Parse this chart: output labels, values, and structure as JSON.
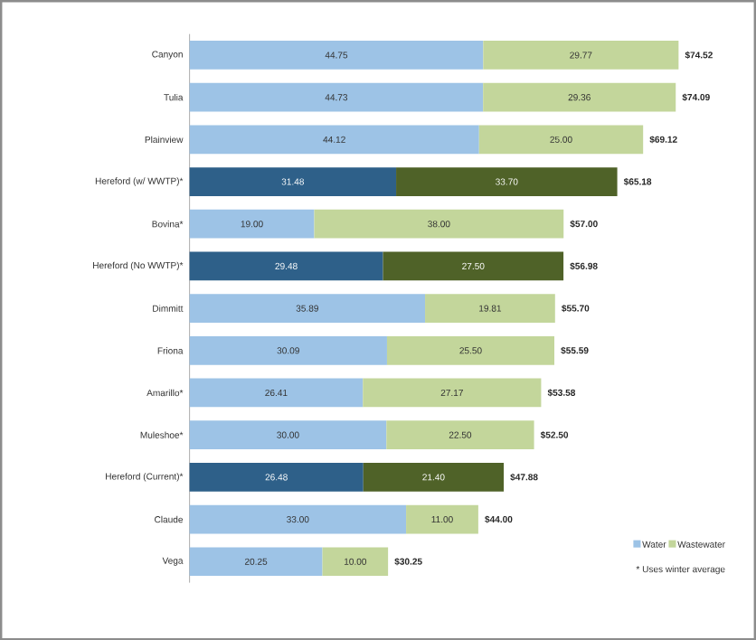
{
  "chart_data": {
    "type": "bar",
    "orientation": "horizontal",
    "stacked": true,
    "legend": "bottom right",
    "categories": [
      "Canyon",
      "Tulia",
      "Plainview",
      "Hereford (w/ WWTP)*",
      "Bovina*",
      "Hereford (No WWTP)*",
      "Dimmitt",
      "Friona",
      "Amarillo*",
      "Muleshoe*",
      "Hereford (Current)*",
      "Claude",
      "Vega"
    ],
    "series": [
      {
        "name": "Water",
        "color": "#9dc3e6",
        "colors": [
          "#9dc3e6",
          "#9dc3e6",
          "#9dc3e6",
          "#2e6089",
          "#9dc3e6",
          "#2e6089",
          "#9dc3e6",
          "#9dc3e6",
          "#9dc3e6",
          "#9dc3e6",
          "#2e6089",
          "#9dc3e6",
          "#9dc3e6"
        ],
        "values": [
          44.75,
          44.73,
          44.12,
          31.48,
          19.0,
          29.48,
          35.89,
          30.09,
          26.41,
          30.0,
          26.48,
          33.0,
          20.25
        ],
        "value_labels": [
          "44.75",
          "44.73",
          "44.12",
          "31.48",
          "19.00",
          "29.48",
          "35.89",
          "30.09",
          "26.41",
          "30.00",
          "26.48",
          "33.00",
          "20.25"
        ]
      },
      {
        "name": "Wastewater",
        "color": "#c3d69b",
        "colors": [
          "#c3d69b",
          "#c3d69b",
          "#c3d69b",
          "#4f6228",
          "#c3d69b",
          "#4f6228",
          "#c3d69b",
          "#c3d69b",
          "#c3d69b",
          "#c3d69b",
          "#4f6228",
          "#c3d69b",
          "#c3d69b"
        ],
        "values": [
          29.77,
          29.36,
          25.0,
          33.7,
          38.0,
          27.5,
          19.81,
          25.5,
          27.17,
          22.5,
          21.4,
          11.0,
          10.0
        ],
        "value_labels": [
          "29.77",
          "29.36",
          "25.00",
          "33.70",
          "38.00",
          "27.50",
          "19.81",
          "25.50",
          "27.17",
          "22.50",
          "21.40",
          "11.00",
          "10.00"
        ]
      }
    ],
    "totals": [
      "$74.52",
      "$74.09",
      "$69.12",
      "$65.18",
      "$57.00",
      "$56.98",
      "$55.70",
      "$55.59",
      "$53.58",
      "$52.50",
      "$47.88",
      "$44.00",
      "$30.25"
    ],
    "annotations": [
      "* Uses winter average"
    ]
  }
}
